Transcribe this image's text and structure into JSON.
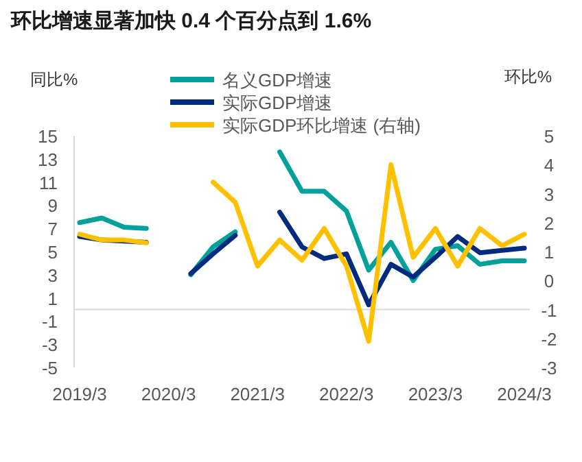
{
  "chart_data": {
    "type": "line",
    "title": "环比增速显著加快 0.4 个百分点到 1.6%",
    "ylabel": "同比%",
    "y2label": "环比%",
    "categories": [
      "2019/3",
      null,
      null,
      null,
      "2020/3",
      null,
      null,
      null,
      "2021/3",
      null,
      null,
      null,
      "2022/3",
      null,
      null,
      null,
      "2023/3",
      null,
      null,
      null,
      "2024/3"
    ],
    "series": [
      {
        "name": "名义GDP增速",
        "color": "#00a19b",
        "values": [
          7.5,
          7.9,
          7.1,
          7.0,
          null,
          3.0,
          5.4,
          6.7,
          null,
          13.6,
          10.2,
          10.2,
          8.5,
          3.4,
          5.8,
          2.5,
          5.2,
          5.5,
          3.9,
          4.2,
          4.2
        ]
      },
      {
        "name": "实际GDP增速",
        "color": "#002b7f",
        "values": [
          6.3,
          6.0,
          5.9,
          5.8,
          null,
          3.1,
          4.8,
          6.4,
          null,
          8.4,
          5.4,
          4.4,
          4.8,
          0.4,
          3.9,
          2.8,
          4.5,
          6.3,
          4.9,
          5.1,
          5.3
        ]
      },
      {
        "name": "实际GDP环比增速 (右轴)",
        "color": "#ffc000",
        "axis": "y2",
        "values": [
          1.6,
          1.4,
          1.4,
          1.3,
          null,
          null,
          3.4,
          2.7,
          0.5,
          1.4,
          0.7,
          1.8,
          0.5,
          -2.1,
          4.0,
          0.8,
          1.8,
          0.5,
          1.8,
          1.2,
          1.6
        ]
      }
    ],
    "ylim": [
      -5,
      15
    ],
    "yticks": [
      -5,
      -3,
      -1,
      1,
      3,
      5,
      7,
      9,
      11,
      13,
      15
    ],
    "y2lim": [
      -3,
      5
    ],
    "y2ticks": [
      -3,
      -2,
      -1,
      0,
      1,
      2,
      3,
      4,
      5
    ],
    "ref_lines": [
      {
        "axis": "y",
        "value": 0,
        "color": "#d9d9d9"
      }
    ],
    "legend": "top"
  }
}
